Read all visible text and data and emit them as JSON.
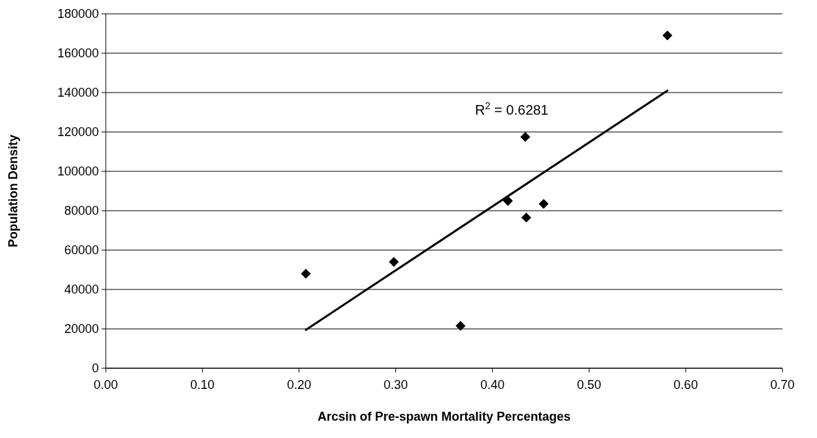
{
  "chart_data": {
    "type": "scatter",
    "xlabel": "Arcsin of Pre-spawn Mortality Percentages",
    "ylabel": "Population Density",
    "xlim": [
      0,
      0.7
    ],
    "xticks": [
      {
        "value": 0,
        "label": "0.00"
      },
      {
        "value": 0.1,
        "label": "0.10"
      },
      {
        "value": 0.2,
        "label": "0.20"
      },
      {
        "value": 0.3,
        "label": "0.30"
      },
      {
        "value": 0.4,
        "label": "0.40"
      },
      {
        "value": 0.5,
        "label": "0.50"
      },
      {
        "value": 0.6,
        "label": "0.60"
      },
      {
        "value": 0.7,
        "label": "0.70"
      }
    ],
    "ylim": [
      0,
      180000
    ],
    "yticks": [
      0,
      20000,
      40000,
      60000,
      80000,
      100000,
      120000,
      140000,
      160000,
      180000
    ],
    "grid": "y",
    "marker": "diamond",
    "series": [
      {
        "color": "#000000",
        "x": [
          0.207,
          0.298,
          0.367,
          0.416,
          0.434,
          0.435,
          0.453,
          0.581
        ],
        "values": [
          48000,
          54000,
          21500,
          85000,
          117500,
          76500,
          83500,
          169000
        ]
      },
      {
        "type": "line",
        "color": "#000000",
        "marker": "none",
        "line_style": "solid",
        "x": [
          0.207,
          0.581
        ],
        "values": [
          19500,
          141000
        ]
      }
    ],
    "annotations": [
      "R$^{2}$ = 0.6281"
    ]
  }
}
